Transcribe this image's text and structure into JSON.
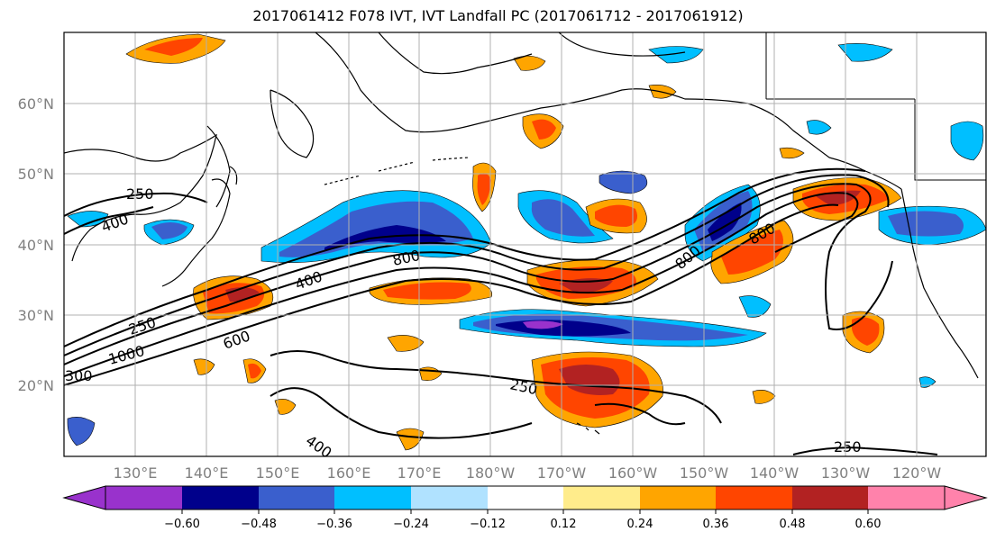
{
  "title": "2017061412 F078 IVT, IVT Landfall PC (2017061712 - 2017061912)",
  "map": {
    "lon_ticks": [
      "130°E",
      "140°E",
      "150°E",
      "160°E",
      "170°E",
      "180°W",
      "170°W",
      "160°W",
      "150°W",
      "140°W",
      "130°W",
      "120°W"
    ],
    "lat_ticks": [
      "60°N",
      "50°N",
      "40°N",
      "30°N",
      "20°N"
    ],
    "gridlines": true,
    "contour_labels": [
      "250",
      "400",
      "250",
      "1000",
      "600",
      "400",
      "800",
      "800",
      "800",
      "250",
      "400",
      "250",
      "300"
    ]
  },
  "colorbar": {
    "tick_labels": [
      "−0.60",
      "−0.48",
      "−0.36",
      "−0.24",
      "−0.12",
      "0.12",
      "0.24",
      "0.36",
      "0.48",
      "0.60"
    ],
    "colors": [
      "#9932cc",
      "#00008b",
      "#3a5fcd",
      "#00bfff",
      "#b0e2ff",
      "#ffffff",
      "#ffec8b",
      "#ffa500",
      "#ff4500",
      "#b22222",
      "#ff82ab"
    ]
  }
}
